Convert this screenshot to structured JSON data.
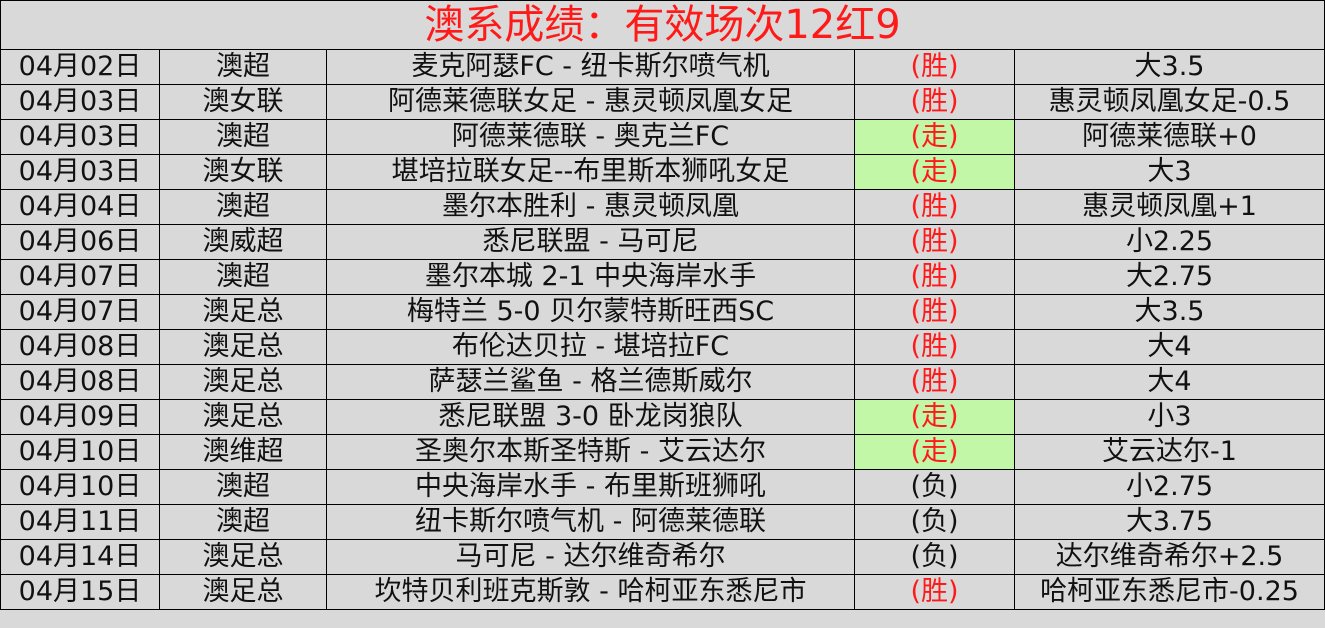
{
  "title": "澳系成绩：有效场次12红9",
  "colors": {
    "win": "#ff1a1a",
    "push_bg": "#c2f7a8",
    "background": "#d9d9d9"
  },
  "rows": [
    {
      "date": "04月02日",
      "league": "澳超",
      "match": "麦克阿瑟FC - 纽卡斯尔喷气机",
      "result": "(胜)",
      "type": "win",
      "pick": "大3.5"
    },
    {
      "date": "04月03日",
      "league": "澳女联",
      "match": "阿德莱德联女足 - 惠灵顿凤凰女足",
      "result": "(胜)",
      "type": "win",
      "pick": "惠灵顿凤凰女足-0.5"
    },
    {
      "date": "04月03日",
      "league": "澳超",
      "match": "阿德莱德联 - 奥克兰FC",
      "result": "(走)",
      "type": "push",
      "pick": "阿德莱德联+0"
    },
    {
      "date": "04月03日",
      "league": "澳女联",
      "match": "堪培拉联女足--布里斯本狮吼女足",
      "result": "(走)",
      "type": "push",
      "pick": "大3"
    },
    {
      "date": "04月04日",
      "league": "澳超",
      "match": "墨尔本胜利 - 惠灵顿凤凰",
      "result": "(胜)",
      "type": "win",
      "pick": "惠灵顿凤凰+1"
    },
    {
      "date": "04月06日",
      "league": "澳威超",
      "match": "悉尼联盟 - 马可尼",
      "result": "(胜)",
      "type": "win",
      "pick": "小2.25"
    },
    {
      "date": "04月07日",
      "league": "澳超",
      "match": "墨尔本城 2-1 中央海岸水手",
      "result": "(胜)",
      "type": "win",
      "pick": "大2.75"
    },
    {
      "date": "04月07日",
      "league": "澳足总",
      "match": "梅特兰 5-0 贝尔蒙特斯旺西SC",
      "result": "(胜)",
      "type": "win",
      "pick": "大3.5"
    },
    {
      "date": "04月08日",
      "league": "澳足总",
      "match": "布伦达贝拉 - 堪培拉FC",
      "result": "(胜)",
      "type": "win",
      "pick": "大4"
    },
    {
      "date": "04月08日",
      "league": "澳足总",
      "match": "萨瑟兰鲨鱼 - 格兰德斯威尔",
      "result": "(胜)",
      "type": "win",
      "pick": "大4"
    },
    {
      "date": "04月09日",
      "league": "澳足总",
      "match": "悉尼联盟 3-0 卧龙岗狼队",
      "result": "(走)",
      "type": "push",
      "pick": "小3"
    },
    {
      "date": "04月10日",
      "league": "澳维超",
      "match": "圣奥尔本斯圣特斯 - 艾云达尔",
      "result": "(走)",
      "type": "push",
      "pick": "艾云达尔-1"
    },
    {
      "date": "04月10日",
      "league": "澳超",
      "match": "中央海岸水手 - 布里斯班狮吼",
      "result": "(负)",
      "type": "loss",
      "pick": "小2.75"
    },
    {
      "date": "04月11日",
      "league": "澳超",
      "match": "纽卡斯尔喷气机 - 阿德莱德联",
      "result": "(负)",
      "type": "loss",
      "pick": "大3.75"
    },
    {
      "date": "04月14日",
      "league": "澳足总",
      "match": "马可尼 - 达尔维奇希尔",
      "result": "(负)",
      "type": "loss",
      "pick": "达尔维奇希尔+2.5"
    },
    {
      "date": "04月15日",
      "league": "澳足总",
      "match": "坎特贝利班克斯敦 - 哈柯亚东悉尼市",
      "result": "(胜)",
      "type": "win",
      "pick": "哈柯亚东悉尼市-0.25"
    }
  ]
}
